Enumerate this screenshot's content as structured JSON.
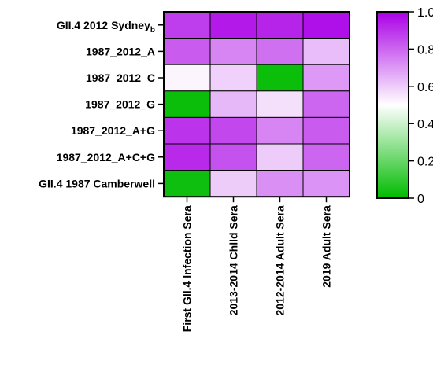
{
  "chart_data": {
    "type": "heatmap",
    "rows": [
      {
        "label": "GII.4 2012 Sydney",
        "subscript": "b"
      },
      {
        "label": "1987_2012_A",
        "subscript": ""
      },
      {
        "label": "1987_2012_C",
        "subscript": ""
      },
      {
        "label": "1987_2012_G",
        "subscript": ""
      },
      {
        "label": "1987_2012_A+G",
        "subscript": ""
      },
      {
        "label": "1987_2012_A+C+G",
        "subscript": ""
      },
      {
        "label": "GII.4 1987 Camberwell",
        "subscript": ""
      }
    ],
    "columns": [
      "First GII.4 Infection Sera",
      "2013-2014 Child Sera",
      "2012-2014 Adult Sera",
      "2019 Adult Sera"
    ],
    "values": [
      [
        0.88,
        0.95,
        0.93,
        0.97
      ],
      [
        0.82,
        0.74,
        0.78,
        0.63
      ],
      [
        0.52,
        0.59,
        0.02,
        0.7
      ],
      [
        0.02,
        0.64,
        0.56,
        0.8
      ],
      [
        0.9,
        0.86,
        0.74,
        0.82
      ],
      [
        0.92,
        0.84,
        0.6,
        0.8
      ],
      [
        0.03,
        0.6,
        0.72,
        0.71
      ]
    ],
    "colorbar": {
      "min": 0,
      "max": 1,
      "ticks": [
        0,
        0.2,
        0.4,
        0.6,
        0.8,
        1.0
      ],
      "tick_labels": [
        "0",
        "0.2",
        "0.4",
        "0.6",
        "0.8",
        "1.0"
      ],
      "colors": {
        "low": "#00bb00",
        "mid": "#ffffff",
        "high": "#aa00e6"
      }
    }
  }
}
